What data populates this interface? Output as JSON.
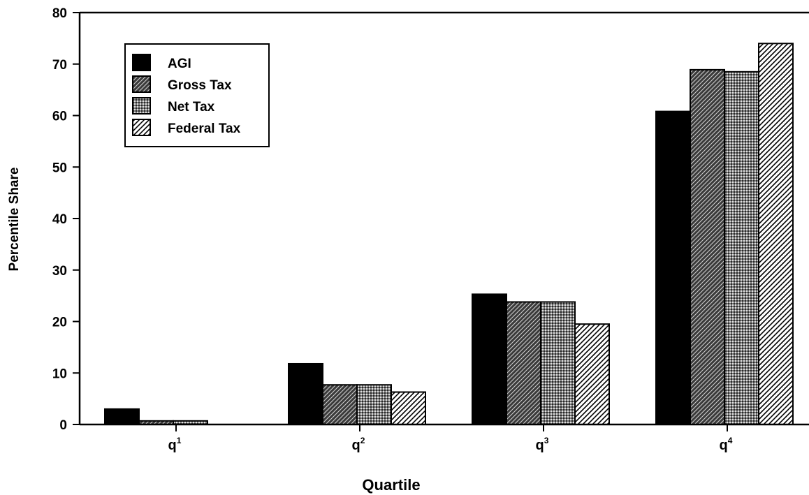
{
  "chart_data": {
    "type": "bar",
    "title": "",
    "xlabel": "Quartile",
    "ylabel": "Percentile Share",
    "ylim": [
      0,
      80
    ],
    "yticks": [
      0,
      10,
      20,
      30,
      40,
      50,
      60,
      70,
      80
    ],
    "categories": [
      {
        "base": "q",
        "sup": "1"
      },
      {
        "base": "q",
        "sup": "2"
      },
      {
        "base": "q",
        "sup": "3"
      },
      {
        "base": "q",
        "sup": "4"
      }
    ],
    "series": [
      {
        "name": "AGI",
        "pattern": "solid",
        "values": [
          3.0,
          11.8,
          25.3,
          60.8
        ]
      },
      {
        "name": "Gross Tax",
        "pattern": "dark-hatch",
        "values": [
          0.7,
          7.7,
          23.8,
          68.9
        ]
      },
      {
        "name": "Net Tax",
        "pattern": "dots",
        "values": [
          0.7,
          7.7,
          23.8,
          68.5
        ]
      },
      {
        "name": "Federal Tax",
        "pattern": "light-hatch",
        "values": [
          0.0,
          6.3,
          19.5,
          74.0
        ]
      }
    ],
    "grid": false,
    "legend_position": "top-left"
  }
}
